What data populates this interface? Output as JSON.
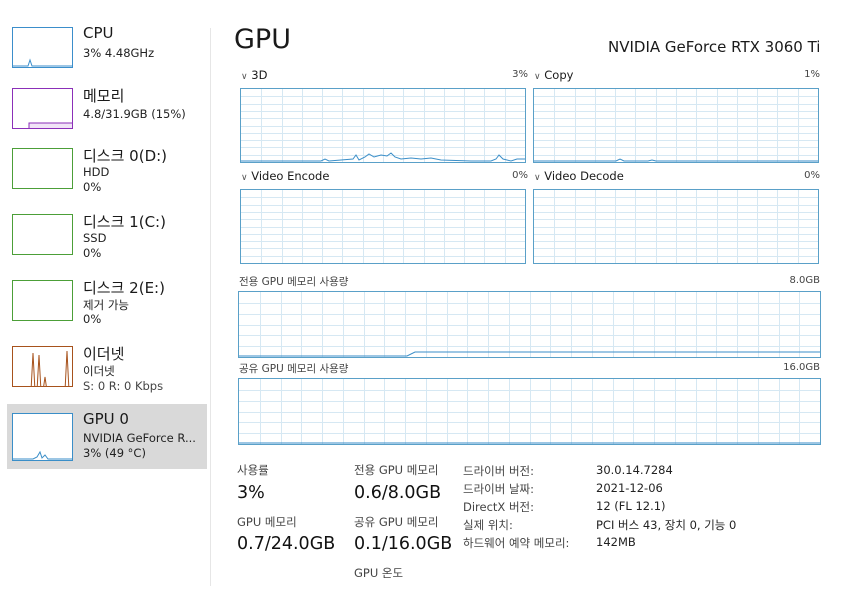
{
  "colors": {
    "cpu": "#3b8ecb",
    "memory": "#8b2fb8",
    "disk": "#4c9f38",
    "ethernet": "#a7521c",
    "gpu": "#3a8ec8",
    "grid": "#d6e8f3",
    "selected_bg": "#d9d9d9"
  },
  "sidebar": {
    "items": [
      {
        "title": "CPU",
        "sub1": "3% 4.48GHz",
        "sub2": "",
        "icon": "cpu-graph"
      },
      {
        "title": "메모리",
        "sub1": "4.8/31.9GB (15%)",
        "sub2": "",
        "icon": "memory-graph"
      },
      {
        "title": "디스크 0(D:)",
        "sub1": "HDD",
        "sub2": "0%",
        "icon": "disk-graph"
      },
      {
        "title": "디스크 1(C:)",
        "sub1": "SSD",
        "sub2": "0%",
        "icon": "disk-graph"
      },
      {
        "title": "디스크 2(E:)",
        "sub1": "제거 가능",
        "sub2": "0%",
        "icon": "disk-graph"
      },
      {
        "title": "이더넷",
        "sub1": "이더넷",
        "sub2": "S: 0 R: 0 Kbps",
        "icon": "ethernet-graph"
      },
      {
        "title": "GPU 0",
        "sub1": "NVIDIA GeForce R...",
        "sub2": "3% (49 °C)",
        "icon": "gpu-graph"
      }
    ]
  },
  "main": {
    "title": "GPU",
    "gpu_name": "NVIDIA GeForce RTX 3060 Ti",
    "engines": [
      {
        "name": "3D",
        "percent": "3%"
      },
      {
        "name": "Copy",
        "percent": "1%"
      },
      {
        "name": "Video Encode",
        "percent": "0%"
      },
      {
        "name": "Video Decode",
        "percent": "0%"
      }
    ],
    "dedicated_memory": {
      "label": "전용 GPU 메모리 사용량",
      "max": "8.0GB"
    },
    "shared_memory": {
      "label": "공유 GPU 메모리 사용량",
      "max": "16.0GB"
    }
  },
  "stats": {
    "utilization": {
      "label": "사용률",
      "value": "3%"
    },
    "dedicated": {
      "label": "전용 GPU 메모리",
      "value": "0.6/8.0GB"
    },
    "gpu_memory": {
      "label": "GPU 메모리",
      "value": "0.7/24.0GB"
    },
    "shared": {
      "label": "공유 GPU 메모리",
      "value": "0.1/16.0GB"
    },
    "temperature": {
      "label": "GPU 온도",
      "value": ""
    }
  },
  "info": [
    {
      "key": "드라이버 버전:",
      "value": "30.0.14.7284"
    },
    {
      "key": "드라이버 날짜:",
      "value": "2021-12-06"
    },
    {
      "key": "DirectX 버전:",
      "value": "12 (FL 12.1)"
    },
    {
      "key": "실제 위치:",
      "value": "PCI 버스 43, 장치 0, 기능 0"
    },
    {
      "key": "하드웨어 예약 메모리:",
      "value": "142MB"
    }
  ]
}
